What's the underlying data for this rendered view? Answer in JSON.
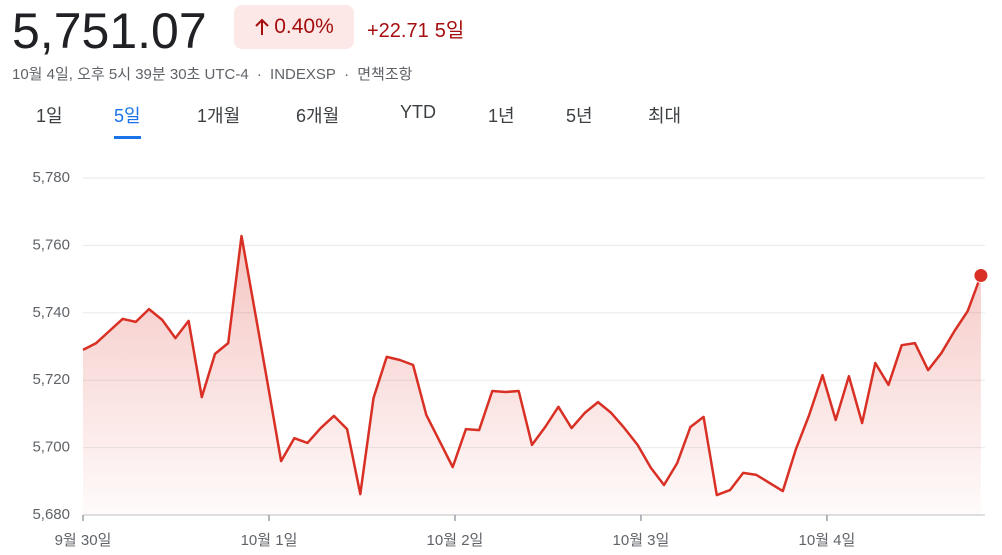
{
  "header": {
    "price": "5,751.07",
    "change_percent": "0.40%",
    "change": "+22.71",
    "period": "5일",
    "timestamp": "10월 4일, 오후 5시 39분 30초 UTC-4",
    "separator": "·",
    "exchange": "INDEXSP",
    "disclaimer": "면책조항"
  },
  "tabs": [
    "1일",
    "5일",
    "1개월",
    "6개월",
    "YTD",
    "1년",
    "5년",
    "최대"
  ],
  "active_tab": 1,
  "chart_data": {
    "type": "line",
    "x": [
      0,
      0.071,
      0.142,
      0.213,
      0.284,
      0.355,
      0.426,
      0.497,
      0.568,
      0.639,
      0.71,
      0.781,
      0.852,
      0.923,
      0.994,
      1.065,
      1.136,
      1.207,
      1.278,
      1.349,
      1.42,
      1.491,
      1.562,
      1.633,
      1.704,
      1.775,
      1.846,
      1.917,
      1.988,
      2.059,
      2.13,
      2.201,
      2.272,
      2.343,
      2.414,
      2.485,
      2.556,
      2.627,
      2.698,
      2.769,
      2.84,
      2.911,
      2.982,
      3.053,
      3.124,
      3.195,
      3.266,
      3.337,
      3.408,
      3.479,
      3.55,
      3.621,
      3.692,
      3.763,
      3.834,
      3.905,
      3.976,
      4.047,
      4.118,
      4.189,
      4.26,
      4.331,
      4.402,
      4.473,
      4.544,
      4.615,
      4.686,
      4.757,
      4.828
    ],
    "series": [
      {
        "color": "#d93025",
        "values": [
          5729,
          5731,
          5734.6,
          5738.2,
          5737.3,
          5741.1,
          5737.9,
          5732.5,
          5737.6,
          5715,
          5727.8,
          5731,
          5762.8,
          5740.8,
          5718.6,
          5696,
          5702.8,
          5701.4,
          5705.8,
          5709.4,
          5705.5,
          5686.2,
          5714.7,
          5726.9,
          5726,
          5724.5,
          5709.7,
          5702,
          5694.2,
          5705.5,
          5705.2,
          5716.8,
          5716.5,
          5716.8,
          5700.8,
          5706.1,
          5712.1,
          5705.8,
          5710.3,
          5713.5,
          5710.3,
          5705.8,
          5700.8,
          5694,
          5688.9,
          5695.4,
          5706.1,
          5709.1,
          5685.9,
          5687.4,
          5692.5,
          5691.9,
          5689.5,
          5687.1,
          5699.6,
          5709.7,
          5721.5,
          5708.2,
          5721.2,
          5707.3,
          5725.1,
          5718.6,
          5730.4,
          5731,
          5723,
          5728,
          5734.6,
          5740.5,
          5751.07
        ]
      }
    ],
    "xlim": [
      0,
      4.85
    ],
    "xticks": [
      {
        "value": 0,
        "label": "9월 30일"
      },
      {
        "value": 1,
        "label": "10월 1일"
      },
      {
        "value": 2,
        "label": "10월 2일"
      },
      {
        "value": 3,
        "label": "10월 3일"
      },
      {
        "value": 4,
        "label": "10월 4일"
      }
    ],
    "ylim": [
      5680,
      5780
    ],
    "yticks": [
      {
        "value": 5680,
        "label": "5,680"
      },
      {
        "value": 5700,
        "label": "5,700"
      },
      {
        "value": 5720,
        "label": "5,720"
      },
      {
        "value": 5740,
        "label": "5,740"
      },
      {
        "value": 5760,
        "label": "5,760"
      },
      {
        "value": 5780,
        "label": "5,780"
      }
    ],
    "grid": true
  }
}
